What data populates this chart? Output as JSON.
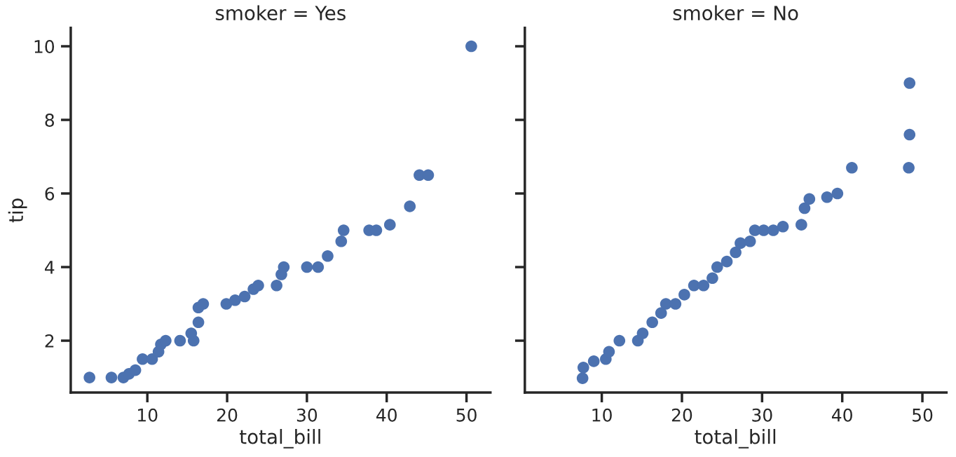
{
  "chart_data": [
    {
      "type": "scatter",
      "title": "smoker = Yes",
      "xlabel": "total_bill",
      "ylabel": "tip",
      "xlim": [
        0.4,
        53
      ],
      "ylim": [
        0.59,
        10.5
      ],
      "xticks": [
        10,
        20,
        30,
        40,
        50
      ],
      "yticks": [
        2,
        4,
        6,
        8,
        10
      ],
      "marker": "circle",
      "grid": false,
      "series": [
        {
          "color": "#4c72b0",
          "x": [
            2.75,
            5.5,
            7.0,
            7.7,
            8.5,
            9.4,
            10.6,
            11.4,
            11.7,
            12.3,
            14.1,
            15.8,
            15.5,
            16.4,
            16.4,
            17.0,
            19.9,
            21.0,
            22.2,
            23.3,
            23.9,
            26.2,
            26.8,
            27.1,
            30.0,
            31.4,
            32.6,
            34.3,
            34.6,
            37.8,
            38.7,
            40.4,
            42.9,
            44.1,
            45.2,
            50.6
          ],
          "values": [
            1.0,
            1.0,
            1.0,
            1.1,
            1.2,
            1.5,
            1.5,
            1.7,
            1.9,
            2.0,
            2.0,
            2.0,
            2.2,
            2.5,
            2.9,
            3.0,
            3.0,
            3.1,
            3.2,
            3.4,
            3.5,
            3.5,
            3.8,
            4.0,
            4.0,
            4.0,
            4.3,
            4.7,
            5.0,
            5.0,
            5.0,
            5.15,
            5.65,
            6.5,
            6.5,
            10.0
          ]
        }
      ]
    },
    {
      "type": "scatter",
      "title": "smoker = No",
      "xlabel": "total_bill",
      "xlim": [
        0.4,
        53
      ],
      "ylim": [
        0.59,
        10.5
      ],
      "xticks": [
        10,
        20,
        30,
        40,
        50
      ],
      "yticks": [
        {
          "value": 2,
          "label": null
        },
        {
          "value": 4,
          "label": null
        },
        {
          "value": 6,
          "label": null
        },
        {
          "value": 8,
          "label": null
        },
        {
          "value": 10,
          "label": null
        }
      ],
      "tick_labels": "x",
      "marker": "circle",
      "grid": false,
      "series": [
        {
          "color": "#4c72b0",
          "x": [
            7.6,
            7.7,
            9.0,
            10.5,
            10.9,
            12.2,
            14.5,
            15.1,
            16.3,
            17.4,
            18.0,
            19.2,
            20.3,
            21.5,
            22.7,
            23.8,
            24.4,
            25.6,
            26.7,
            27.3,
            28.5,
            29.1,
            30.2,
            31.4,
            32.6,
            34.9,
            35.3,
            35.9,
            38.1,
            39.4,
            41.2,
            48.3,
            48.4,
            48.4
          ],
          "values": [
            0.98,
            1.27,
            1.44,
            1.5,
            1.7,
            2.0,
            2.0,
            2.2,
            2.5,
            2.75,
            3.0,
            3.0,
            3.25,
            3.5,
            3.5,
            3.7,
            4.0,
            4.15,
            4.4,
            4.65,
            4.7,
            5.0,
            5.0,
            5.0,
            5.1,
            5.15,
            5.6,
            5.85,
            5.9,
            6.0,
            6.7,
            6.7,
            7.6,
            9.0
          ]
        }
      ]
    }
  ]
}
